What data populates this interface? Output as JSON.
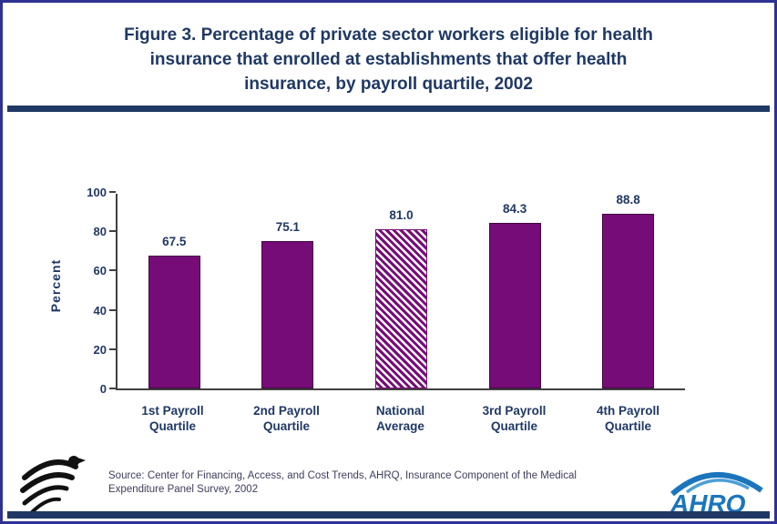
{
  "colors": {
    "title_text": "#1f3864",
    "accent_rule": "#1f3864",
    "page_border": "#2e3192",
    "bar_fill": "#760c78",
    "axis_line": "#404040",
    "ahrq_logo_blue": "#1b75bc"
  },
  "chart_data": {
    "type": "bar",
    "title": "Figure 3. Percentage of private sector workers eligible for health insurance that enrolled at establishments that offer health insurance, by payroll quartile, 2002",
    "title_lines": [
      "Figure 3. Percentage of private sector workers eligible for health",
      "insurance that enrolled at establishments that offer health",
      "insurance, by payroll quartile, 2002"
    ],
    "categories": [
      "1st Payroll Quartile",
      "2nd Payroll Quartile",
      "National Average",
      "3rd Payroll Quartile",
      "4th Payroll Quartile"
    ],
    "category_lines": [
      [
        "1st Payroll",
        "Quartile"
      ],
      [
        "2nd Payroll",
        "Quartile"
      ],
      [
        "National",
        "Average"
      ],
      [
        "3rd Payroll",
        "Quartile"
      ],
      [
        "4th Payroll",
        "Quartile"
      ]
    ],
    "values": [
      67.5,
      75.1,
      81.0,
      84.3,
      88.8
    ],
    "value_labels": [
      "67.5",
      "75.1",
      "81.0",
      "84.3",
      "88.8"
    ],
    "xlabel": "",
    "ylabel": "Percent",
    "ylim": [
      0,
      100
    ],
    "yticks": [
      0,
      20,
      40,
      60,
      80,
      100
    ],
    "grid": false,
    "legend": false,
    "bar_color": "#760c78",
    "hatched_index": 2,
    "hatched_category": "National Average"
  },
  "footer": {
    "source_lines": [
      "Source: Center for Financing, Access, and Cost Trends, AHRQ, Insurance Component of the Medical",
      "Expenditure Panel Survey, 2002"
    ],
    "source_text": "Source: Center for Financing, Access, and Cost Trends, AHRQ, Insurance Component of the Medical Expenditure Panel Survey, 2002",
    "hhs_logo_icon": "hhs-eagle-seal",
    "ahrq_logo_text": "AHRQ"
  }
}
